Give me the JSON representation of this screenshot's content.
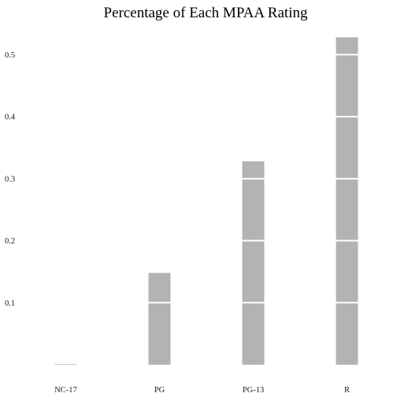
{
  "chart_data": {
    "type": "bar",
    "title": "Percentage of Each MPAA Rating",
    "xlabel": "",
    "ylabel": "",
    "categories": [
      "NC-17",
      "PG",
      "PG-13",
      "R"
    ],
    "values": [
      0.001,
      0.148,
      0.328,
      0.528
    ],
    "ylim": [
      0,
      0.55
    ],
    "yticks": [
      0.1,
      0.2,
      0.3,
      0.4,
      0.5
    ],
    "ytick_labels": [
      "0.1",
      "0.2",
      "0.3",
      "0.4",
      "0.5"
    ],
    "grid": "white gridlines drawn across bars only",
    "legend": "none",
    "colors": {
      "bar": "#b3b3b3",
      "gridline": "#ffffff",
      "background": "#ffffff"
    }
  }
}
